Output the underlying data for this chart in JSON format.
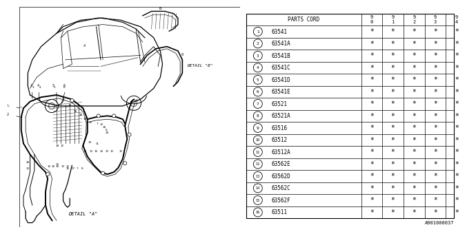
{
  "bg_color": "#ffffff",
  "parts_table": {
    "rows": [
      {
        "num": 1,
        "code": "63541"
      },
      {
        "num": 2,
        "code": "63541A"
      },
      {
        "num": 3,
        "code": "63541B"
      },
      {
        "num": 4,
        "code": "63541C"
      },
      {
        "num": 5,
        "code": "63541D"
      },
      {
        "num": 6,
        "code": "63541E"
      },
      {
        "num": 7,
        "code": "63521"
      },
      {
        "num": 8,
        "code": "63521A"
      },
      {
        "num": 9,
        "code": "63516"
      },
      {
        "num": 10,
        "code": "63512"
      },
      {
        "num": 11,
        "code": "63512A"
      },
      {
        "num": 12,
        "code": "63562E"
      },
      {
        "num": 13,
        "code": "63562D"
      },
      {
        "num": 14,
        "code": "63562C"
      },
      {
        "num": 15,
        "code": "63562F"
      },
      {
        "num": 16,
        "code": "63511"
      }
    ]
  },
  "footer_code": "A901000037",
  "year_cols": [
    "9\n0",
    "9\n1",
    "9\n2",
    "9\n3",
    "9\n4"
  ]
}
